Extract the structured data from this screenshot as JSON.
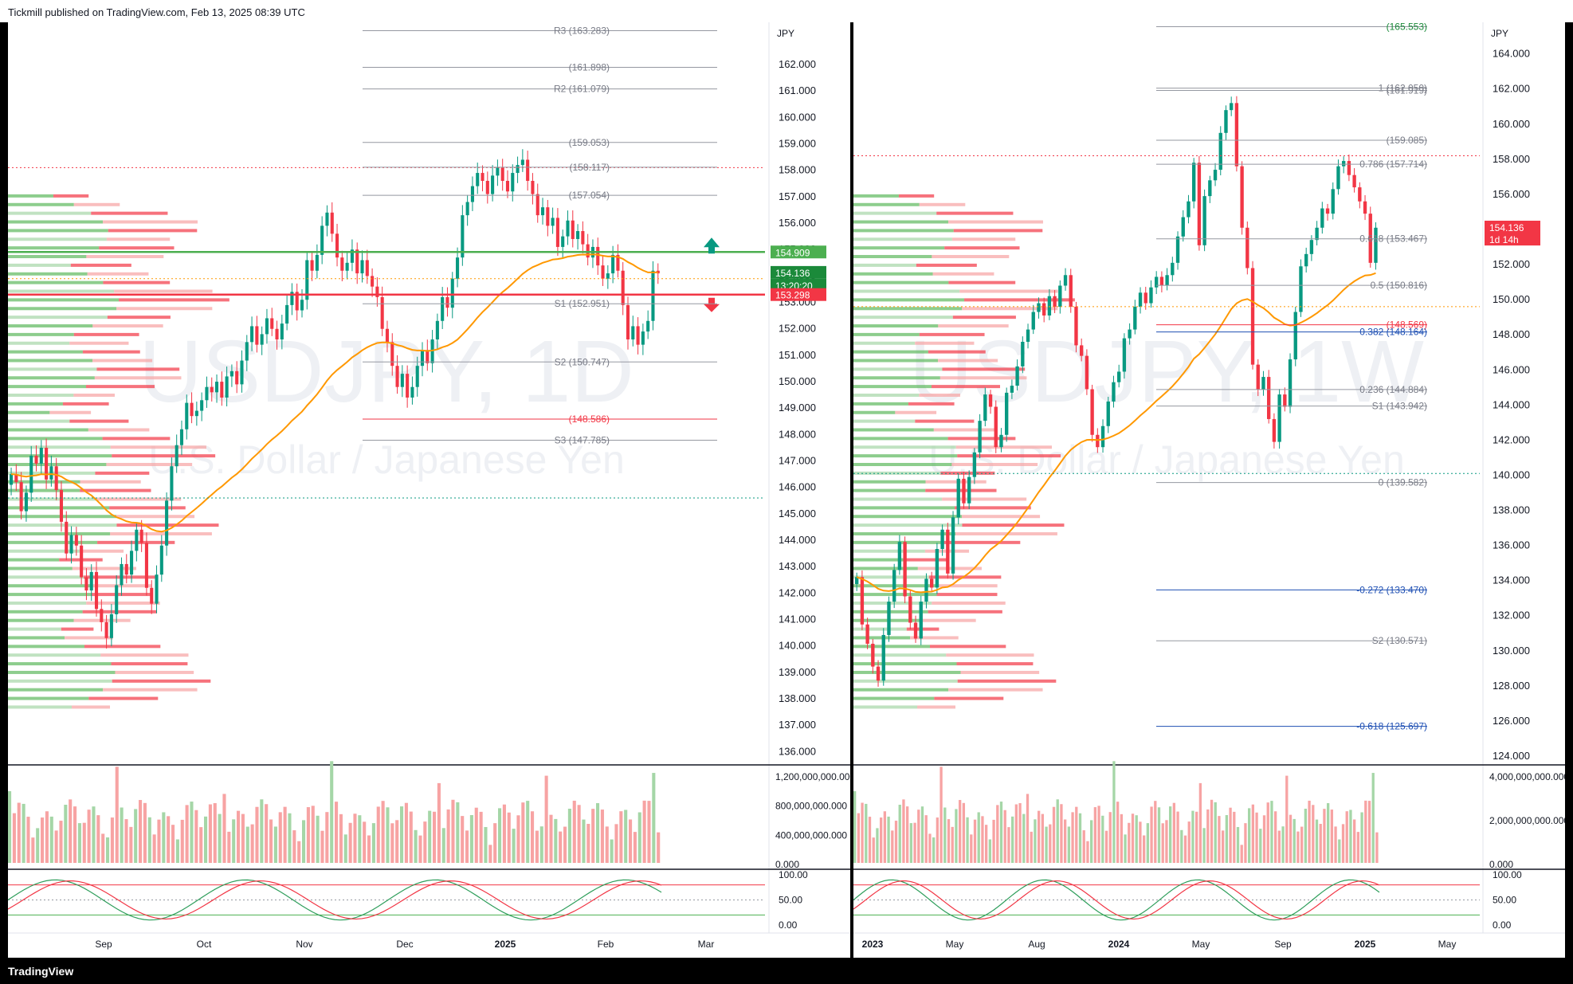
{
  "header": {
    "publisher_line": "Tickmill published on TradingView.com, Feb 13, 2025 08:39 UTC"
  },
  "footer": {
    "brand": "TradingView"
  },
  "colors": {
    "up": "#26a69a",
    "up_light": "#5cb85c",
    "down": "#f23645",
    "down_light": "#f7a3a3",
    "ema": "#ff9800",
    "bg": "#ffffff",
    "grid": "#f0f3fa"
  },
  "chart_data": [
    {
      "type": "candlestick",
      "symbol": "USDJPY",
      "timeframe": "1D",
      "watermark_symbol": "USDJPY, 1D",
      "watermark_desc": "U.S. Dollar / Japanese Yen",
      "currency": "JPY",
      "ylim": [
        135.5,
        163.6
      ],
      "y_ticks": [
        136,
        137,
        138,
        139,
        140,
        141,
        142,
        143,
        144,
        145,
        146,
        147,
        148,
        149,
        150,
        151,
        152,
        153,
        154,
        155,
        156,
        157,
        158,
        159,
        160,
        161,
        162
      ],
      "x_labels": [
        "Sep",
        "Oct",
        "Nov",
        "Dec",
        "2025",
        "Feb",
        "Mar"
      ],
      "close_series": [
        146.5,
        146.2,
        145.1,
        145.8,
        147.2,
        146.9,
        147.5,
        146.3,
        146.8,
        145.9,
        144.7,
        143.5,
        144.2,
        143.8,
        142.6,
        142.1,
        142.8,
        141.4,
        140.9,
        140.3,
        141.2,
        142.3,
        143.1,
        142.7,
        143.6,
        144.4,
        143.9,
        142.2,
        141.6,
        142.7,
        143.8,
        145.5,
        146.8,
        147.6,
        148.2,
        149.2,
        148.7,
        148.9,
        149.3,
        149.8,
        149.6,
        150.0,
        149.4,
        150.2,
        150.4,
        149.9,
        150.8,
        151.5,
        152.1,
        151.4,
        151.8,
        152.4,
        152.0,
        151.6,
        152.2,
        152.9,
        153.4,
        152.7,
        153.1,
        154.6,
        154.2,
        154.8,
        155.9,
        156.4,
        155.6,
        154.7,
        154.2,
        154.5,
        155.0,
        154.1,
        154.6,
        154.0,
        153.6,
        153.2,
        152.0,
        151.5,
        150.6,
        149.8,
        150.3,
        149.4,
        149.8,
        150.6,
        151.2,
        150.7,
        151.6,
        152.3,
        153.2,
        152.8,
        153.9,
        154.7,
        156.3,
        156.8,
        157.4,
        157.9,
        157.6,
        157.1,
        157.8,
        158.1,
        157.6,
        157.2,
        157.9,
        158.2,
        158.4,
        157.6,
        157.1,
        156.3,
        156.6,
        155.9,
        156.2,
        155.1,
        155.5,
        156.1,
        155.4,
        155.7,
        155.2,
        154.7,
        155.1,
        154.4,
        153.9,
        154.1,
        154.8,
        154.2,
        152.9,
        151.6,
        152.1,
        151.4,
        151.9,
        152.3,
        154.2,
        154.1
      ],
      "levels": [
        {
          "label": "R3 (163.283)",
          "value": 163.283
        },
        {
          "label": "(161.898)",
          "value": 161.898
        },
        {
          "label": "R2 (161.079)",
          "value": 161.079
        },
        {
          "label": "(159.053)",
          "value": 159.053
        },
        {
          "label": "(158.117)",
          "value": 158.117
        },
        {
          "label": "(157.054)",
          "value": 157.054
        },
        {
          "label": "S1 (152.951)",
          "value": 152.951
        },
        {
          "label": "S2 (150.747)",
          "value": 150.747
        },
        {
          "label": "(148.586)",
          "value": 148.586
        },
        {
          "label": "S3 (147.785)",
          "value": 147.785
        }
      ],
      "resistance": 154.909,
      "support": 153.298,
      "dotted_red": 158.1,
      "dotted_green": 145.6,
      "dotted_orange": 153.9,
      "price_tags": [
        {
          "text": "154.909",
          "value": 154.909,
          "color": "#4caf50"
        },
        {
          "text": "154.136",
          "value": 154.136,
          "color": "#1b8a3a"
        },
        {
          "text": "13:20:20",
          "value": 153.65,
          "color": "#1b8a3a"
        },
        {
          "text": "153.298",
          "value": 153.298,
          "color": "#f23645"
        }
      ],
      "volume": {
        "ticks": [
          "1,200,000,000.000",
          "800,000,000.000",
          "400,000,000.000",
          "0.000"
        ]
      },
      "oscillator": {
        "ticks": [
          "100.00",
          "50.00",
          "0.00"
        ]
      }
    },
    {
      "type": "candlestick",
      "symbol": "USDJPY",
      "timeframe": "1W",
      "watermark_symbol": "USDJPY, 1W",
      "watermark_desc": "U.S. Dollar / Japanese Yen",
      "currency": "JPY",
      "ylim": [
        123.5,
        165.8
      ],
      "y_ticks": [
        124,
        126,
        128,
        130,
        132,
        134,
        136,
        138,
        140,
        142,
        144,
        146,
        148,
        150,
        152,
        154,
        156,
        158,
        160,
        162,
        164
      ],
      "x_labels": [
        "2023",
        "May",
        "Aug",
        "2024",
        "May",
        "Sep",
        "2025",
        "May"
      ],
      "close_series": [
        134.2,
        131.5,
        130.4,
        129.1,
        128.3,
        130.9,
        132.8,
        134.6,
        136.2,
        133.1,
        131.6,
        130.7,
        132.8,
        134.1,
        133.6,
        135.8,
        136.9,
        134.4,
        137.6,
        139.8,
        138.4,
        139.9,
        141.3,
        143.1,
        144.6,
        143.9,
        141.6,
        142.3,
        144.7,
        145.1,
        146.2,
        147.6,
        148.3,
        149.3,
        149.8,
        149.1,
        150.2,
        149.6,
        150.8,
        151.4,
        149.6,
        147.4,
        146.8,
        144.9,
        142.3,
        141.6,
        142.8,
        144.2,
        145.3,
        145.9,
        147.8,
        148.3,
        149.6,
        150.4,
        149.8,
        150.7,
        151.3,
        150.8,
        151.4,
        152.1,
        153.6,
        154.7,
        155.6,
        157.8,
        153.1,
        155.9,
        156.8,
        157.4,
        159.5,
        160.8,
        161.2,
        157.6,
        154.1,
        151.8,
        146.3,
        144.9,
        145.6,
        143.2,
        141.9,
        144.6,
        143.9,
        146.6,
        149.3,
        151.9,
        152.6,
        153.4,
        154.1,
        155.2,
        154.9,
        156.3,
        157.6,
        157.9,
        157.1,
        156.4,
        155.6,
        154.9,
        152.1,
        154.1
      ],
      "levels": [
        {
          "label": "(165.553)",
          "value": 165.553
        },
        {
          "label": "1 (162.050)",
          "value": 162.05
        },
        {
          "label": "(161.919)",
          "value": 161.919
        },
        {
          "label": "(159.085)",
          "value": 159.085
        },
        {
          "label": "0.786 (157.714)",
          "value": 157.714
        },
        {
          "label": "0.618 (153.467)",
          "value": 153.467
        },
        {
          "label": "0.5 (150.816)",
          "value": 150.816
        },
        {
          "label": "(148.569)",
          "value": 148.569
        },
        {
          "label": "0.382 (148.164)",
          "value": 148.164
        },
        {
          "label": "0.236 (144.884)",
          "value": 144.884
        },
        {
          "label": "S1 (143.942)",
          "value": 143.942
        },
        {
          "label": "0 (139.582)",
          "value": 139.582
        },
        {
          "label": "-0.272 (133.470)",
          "value": 133.47
        },
        {
          "label": "S2 (130.571)",
          "value": 130.571
        },
        {
          "label": "-0.618 (125.697)",
          "value": 125.697
        }
      ],
      "dotted_red": 158.2,
      "dotted_green": 140.1,
      "dotted_orange": 149.6,
      "price_tags": [
        {
          "text": "154.136",
          "value": 154.136,
          "color": "#f23645"
        },
        {
          "text": "1d 14h",
          "value": 153.45,
          "color": "#f23645"
        }
      ],
      "volume": {
        "ticks": [
          "4,000,000,000.000",
          "2,000,000,000.000",
          "0.000"
        ]
      },
      "oscillator": {
        "ticks": [
          "100.00",
          "50.00",
          "0.00"
        ]
      }
    }
  ]
}
